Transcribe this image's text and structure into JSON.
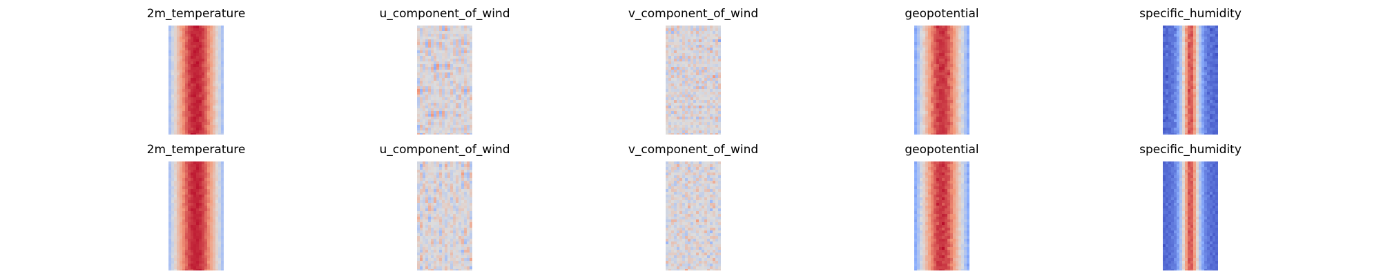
{
  "figure": {
    "rows": [
      {
        "panels": [
          {
            "title": "2m_temperature",
            "image_kind": "band-temperature"
          },
          {
            "title": "u_component_of_wind",
            "image_kind": "streaks-wind-u"
          },
          {
            "title": "v_component_of_wind",
            "image_kind": "speckle-wind-v"
          },
          {
            "title": "geopotential",
            "image_kind": "band-geopotential"
          },
          {
            "title": "specific_humidity",
            "image_kind": "core-humidity"
          }
        ]
      },
      {
        "panels": [
          {
            "title": "2m_temperature",
            "image_kind": "band-temperature"
          },
          {
            "title": "u_component_of_wind",
            "image_kind": "streaks-wind-u"
          },
          {
            "title": "v_component_of_wind",
            "image_kind": "speckle-wind-v"
          },
          {
            "title": "geopotential",
            "image_kind": "band-geopotential"
          },
          {
            "title": "specific_humidity",
            "image_kind": "core-humidity"
          }
        ]
      }
    ],
    "colormap": "coolwarm",
    "colors": {
      "cool": "#3b4cc0",
      "neutral": "#dddddd",
      "warm": "#b40426"
    }
  }
}
